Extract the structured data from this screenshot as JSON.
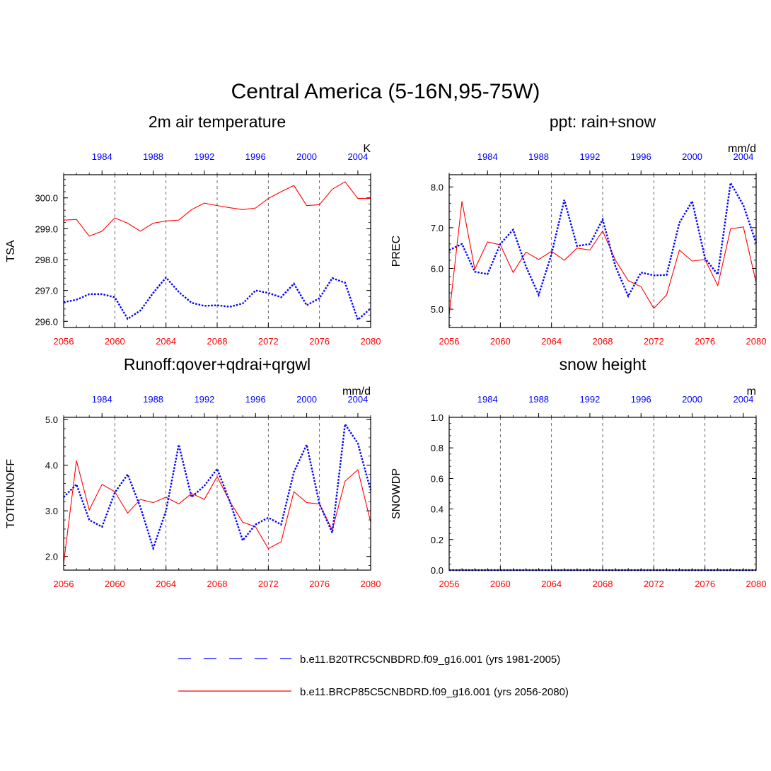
{
  "title": "Central America (5-16N,95-75W)",
  "colors": {
    "current": "#0000ff",
    "future": "#ff0000",
    "axis": "#000000",
    "grid": "#444444"
  },
  "legend": {
    "current_label": "b.e11.B20TRC5CNBDRD.f09_g16.001 (yrs 1981-2005)",
    "future_label": "b.e11.BRCP85C5CNBDRD.f09_g16.001 (yrs 2056-2080)"
  },
  "chart_data": [
    {
      "type": "line",
      "title": "2m air temperature",
      "ylabel": "TSA",
      "units": "K",
      "ylim": [
        295.8,
        300.75
      ],
      "yticks": [
        "296.0",
        "297.0",
        "298.0",
        "299.0",
        "300.0"
      ],
      "xlim": [
        2056,
        2080
      ],
      "x_bottom_ticks": [
        "2056",
        "2060",
        "2064",
        "2068",
        "2072",
        "2076",
        "2080"
      ],
      "x_top_ticks": [
        "1984",
        "1988",
        "1992",
        "1996",
        "2000",
        "2004"
      ],
      "gridlines_x": [
        2060,
        2064,
        2068,
        2072,
        2076
      ],
      "x": [
        2056,
        2057,
        2058,
        2059,
        2060,
        2061,
        2062,
        2063,
        2064,
        2065,
        2066,
        2067,
        2068,
        2069,
        2070,
        2071,
        2072,
        2073,
        2074,
        2075,
        2076,
        2077,
        2078,
        2079,
        2080
      ],
      "series": [
        {
          "name": "b.e11.B20TRC5CNBDRD.f09_g16.001 (yrs 1981-2005)",
          "key": "current",
          "values": [
            296.62,
            296.7,
            296.88,
            296.88,
            296.78,
            296.08,
            296.35,
            296.92,
            297.42,
            296.95,
            296.6,
            296.5,
            296.52,
            296.47,
            296.58,
            297.0,
            296.92,
            296.78,
            297.22,
            296.52,
            296.75,
            297.4,
            297.25,
            296.05,
            296.42
          ]
        },
        {
          "name": "b.e11.BRCP85C5CNBDRD.f09_g16.001 (yrs 2056-2080)",
          "key": "future",
          "values": [
            299.28,
            299.3,
            298.76,
            298.92,
            299.35,
            299.18,
            298.92,
            299.18,
            299.25,
            299.28,
            299.62,
            299.83,
            299.75,
            299.68,
            299.62,
            299.67,
            299.98,
            300.2,
            300.4,
            299.75,
            299.78,
            300.28,
            300.52,
            299.98,
            299.98
          ]
        }
      ]
    },
    {
      "type": "line",
      "title": "ppt: rain+snow",
      "ylabel": "PREC",
      "units": "mm/d",
      "ylim": [
        4.55,
        8.3
      ],
      "yticks": [
        "5.0",
        "6.0",
        "7.0",
        "8.0"
      ],
      "xlim": [
        2056,
        2080
      ],
      "x_bottom_ticks": [
        "2056",
        "2060",
        "2064",
        "2068",
        "2072",
        "2076",
        "2080"
      ],
      "x_top_ticks": [
        "1984",
        "1988",
        "1992",
        "1996",
        "2000",
        "2004"
      ],
      "gridlines_x": [
        2060,
        2064,
        2068,
        2072,
        2076
      ],
      "x": [
        2056,
        2057,
        2058,
        2059,
        2060,
        2061,
        2062,
        2063,
        2064,
        2065,
        2066,
        2067,
        2068,
        2069,
        2070,
        2071,
        2072,
        2073,
        2074,
        2075,
        2076,
        2077,
        2078,
        2079,
        2080
      ],
      "series": [
        {
          "name": "b.e11.B20TRC5CNBDRD.f09_g16.001 (yrs 1981-2005)",
          "key": "current",
          "values": [
            6.45,
            6.6,
            5.92,
            5.86,
            6.6,
            6.95,
            6.05,
            5.35,
            6.35,
            7.68,
            6.55,
            6.6,
            7.2,
            6.05,
            5.32,
            5.9,
            5.83,
            5.84,
            7.12,
            7.65,
            6.25,
            5.85,
            8.1,
            7.55,
            6.62
          ]
        },
        {
          "name": "b.e11.BRCP85C5CNBDRD.f09_g16.001 (yrs 2056-2080)",
          "key": "future",
          "values": [
            4.85,
            7.65,
            5.98,
            6.65,
            6.58,
            5.9,
            6.4,
            6.22,
            6.42,
            6.2,
            6.5,
            6.45,
            6.92,
            6.2,
            5.7,
            5.55,
            5.02,
            5.35,
            6.45,
            6.18,
            6.22,
            5.58,
            6.97,
            7.02,
            5.65
          ]
        }
      ]
    },
    {
      "type": "line",
      "title": "Runoff:qover+qdrai+qrgwl",
      "ylabel": "TOTRUNOFF",
      "units": "mm/d",
      "ylim": [
        1.7,
        5.05
      ],
      "yticks": [
        "2.0",
        "3.0",
        "4.0",
        "5.0"
      ],
      "xlim": [
        2056,
        2080
      ],
      "x_bottom_ticks": [
        "2056",
        "2060",
        "2064",
        "2068",
        "2072",
        "2076",
        "2080"
      ],
      "x_top_ticks": [
        "1984",
        "1988",
        "1992",
        "1996",
        "2000",
        "2004"
      ],
      "gridlines_x": [
        2060,
        2064,
        2068,
        2072,
        2076
      ],
      "x": [
        2056,
        2057,
        2058,
        2059,
        2060,
        2061,
        2062,
        2063,
        2064,
        2065,
        2066,
        2067,
        2068,
        2069,
        2070,
        2071,
        2072,
        2073,
        2074,
        2075,
        2076,
        2077,
        2078,
        2079,
        2080
      ],
      "series": [
        {
          "name": "b.e11.B20TRC5CNBDRD.f09_g16.001 (yrs 1981-2005)",
          "key": "current",
          "values": [
            3.3,
            3.58,
            2.8,
            2.65,
            3.4,
            3.8,
            3.08,
            2.18,
            3.0,
            4.45,
            3.3,
            3.55,
            3.92,
            3.2,
            2.35,
            2.7,
            2.85,
            2.7,
            3.85,
            4.45,
            3.15,
            2.52,
            4.9,
            4.48,
            3.45
          ]
        },
        {
          "name": "b.e11.BRCP85C5CNBDRD.f09_g16.001 (yrs 2056-2080)",
          "key": "future",
          "values": [
            1.85,
            4.1,
            3.02,
            3.58,
            3.42,
            2.95,
            3.25,
            3.18,
            3.3,
            3.15,
            3.38,
            3.25,
            3.75,
            3.2,
            2.75,
            2.65,
            2.17,
            2.32,
            3.42,
            3.18,
            3.15,
            2.58,
            3.65,
            3.9,
            2.75
          ]
        }
      ]
    },
    {
      "type": "line",
      "title": "snow height",
      "ylabel": "SNOWDP",
      "units": "m",
      "ylim": [
        0.0,
        1.0
      ],
      "yticks": [
        "0.0",
        "0.2",
        "0.4",
        "0.6",
        "0.8",
        "1.0"
      ],
      "xlim": [
        2056,
        2080
      ],
      "x_bottom_ticks": [
        "2056",
        "2060",
        "2064",
        "2068",
        "2072",
        "2076",
        "2080"
      ],
      "x_top_ticks": [
        "1984",
        "1988",
        "1992",
        "1996",
        "2000",
        "2004"
      ],
      "gridlines_x": [
        2060,
        2064,
        2068,
        2072,
        2076
      ],
      "x": [
        2056,
        2057,
        2058,
        2059,
        2060,
        2061,
        2062,
        2063,
        2064,
        2065,
        2066,
        2067,
        2068,
        2069,
        2070,
        2071,
        2072,
        2073,
        2074,
        2075,
        2076,
        2077,
        2078,
        2079,
        2080
      ],
      "series": [
        {
          "name": "b.e11.B20TRC5CNBDRD.f09_g16.001 (yrs 1981-2005)",
          "key": "current",
          "values": [
            0,
            0,
            0,
            0,
            0,
            0,
            0,
            0,
            0,
            0,
            0,
            0,
            0,
            0,
            0,
            0,
            0,
            0,
            0,
            0,
            0,
            0,
            0,
            0,
            0
          ]
        },
        {
          "name": "b.e11.BRCP85C5CNBDRD.f09_g16.001 (yrs 2056-2080)",
          "key": "future",
          "values": [
            0,
            0,
            0,
            0,
            0,
            0,
            0,
            0,
            0,
            0,
            0,
            0,
            0,
            0,
            0,
            0,
            0,
            0,
            0,
            0,
            0,
            0,
            0,
            0,
            0
          ]
        }
      ]
    }
  ]
}
